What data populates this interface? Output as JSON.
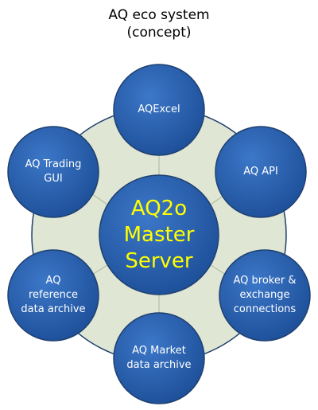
{
  "title": {
    "line1": "AQ eco system",
    "line2": "(concept)"
  },
  "center": {
    "line1": "AQ2o",
    "line2": "Master",
    "line3": "Server",
    "text_color": "#ffff00"
  },
  "nodes": [
    {
      "id": "aqexcel",
      "lines": [
        "AQExcel"
      ]
    },
    {
      "id": "aq-api",
      "lines": [
        "AQ API"
      ]
    },
    {
      "id": "aq-broker",
      "lines": [
        "AQ broker &",
        "exchange",
        "connections"
      ]
    },
    {
      "id": "aq-market",
      "lines": [
        "AQ Market",
        "data archive"
      ]
    },
    {
      "id": "aq-reference",
      "lines": [
        "AQ",
        "reference",
        "data archive"
      ]
    },
    {
      "id": "aq-trading-gui",
      "lines": [
        "AQ Trading",
        "GUI"
      ]
    }
  ],
  "colors": {
    "node_fill": "#2e5fab",
    "node_stroke": "#1f4070",
    "ring_fill": "#dfe6d4",
    "ring_stroke": "#1f3f6e",
    "connector": "#a8b59a"
  }
}
